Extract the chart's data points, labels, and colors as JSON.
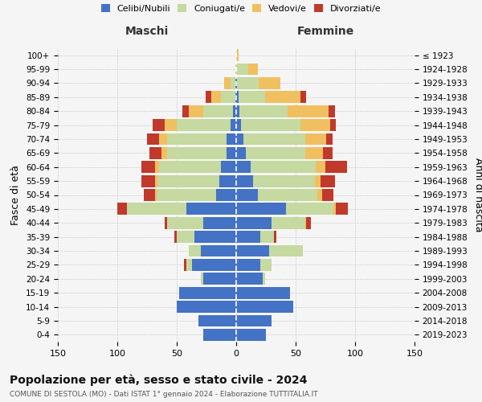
{
  "age_groups": [
    "0-4",
    "5-9",
    "10-14",
    "15-19",
    "20-24",
    "25-29",
    "30-34",
    "35-39",
    "40-44",
    "45-49",
    "50-54",
    "55-59",
    "60-64",
    "65-69",
    "70-74",
    "75-79",
    "80-84",
    "85-89",
    "90-94",
    "95-99",
    "100+"
  ],
  "birth_years": [
    "2019-2023",
    "2014-2018",
    "2009-2013",
    "2004-2008",
    "1999-2003",
    "1994-1998",
    "1989-1993",
    "1984-1988",
    "1979-1983",
    "1974-1978",
    "1969-1973",
    "1964-1968",
    "1959-1963",
    "1954-1958",
    "1949-1953",
    "1944-1948",
    "1939-1943",
    "1934-1938",
    "1929-1933",
    "1924-1928",
    "≤ 1923"
  ],
  "colors": {
    "celibe": "#4472c4",
    "coniugato": "#c5d9a0",
    "vedovo": "#f0c060",
    "divorziato": "#c0392b"
  },
  "maschi": {
    "celibe": [
      28,
      32,
      50,
      48,
      28,
      37,
      30,
      35,
      28,
      42,
      17,
      14,
      13,
      8,
      8,
      5,
      3,
      1,
      1,
      0,
      0
    ],
    "coniugato": [
      0,
      0,
      0,
      0,
      2,
      5,
      10,
      15,
      30,
      50,
      50,
      52,
      52,
      50,
      50,
      45,
      25,
      12,
      4,
      0,
      0
    ],
    "vedovo": [
      0,
      0,
      0,
      0,
      0,
      0,
      0,
      0,
      0,
      0,
      1,
      2,
      3,
      5,
      7,
      10,
      12,
      8,
      5,
      1,
      0
    ],
    "divorziato": [
      0,
      0,
      0,
      0,
      0,
      2,
      0,
      2,
      2,
      8,
      10,
      12,
      12,
      10,
      10,
      10,
      5,
      5,
      0,
      0,
      0
    ]
  },
  "femmine": {
    "celibe": [
      25,
      30,
      48,
      45,
      22,
      20,
      28,
      20,
      30,
      42,
      18,
      14,
      12,
      8,
      6,
      4,
      3,
      2,
      1,
      0,
      0
    ],
    "coniugato": [
      0,
      0,
      0,
      0,
      2,
      10,
      28,
      12,
      28,
      40,
      50,
      52,
      55,
      50,
      52,
      50,
      40,
      22,
      18,
      10,
      1
    ],
    "vedovo": [
      0,
      0,
      0,
      0,
      0,
      0,
      0,
      0,
      1,
      2,
      4,
      5,
      8,
      15,
      18,
      25,
      35,
      30,
      18,
      8,
      1
    ],
    "divorziato": [
      0,
      0,
      0,
      0,
      0,
      0,
      0,
      2,
      4,
      10,
      10,
      12,
      18,
      8,
      5,
      5,
      5,
      5,
      0,
      0,
      0
    ]
  },
  "title": "Popolazione per età, sesso e stato civile - 2024",
  "subtitle": "COMUNE DI SESTOLA (MO) - Dati ISTAT 1° gennaio 2024 - Elaborazione TUTTITALIA.IT",
  "xlabel_left": "Maschi",
  "xlabel_right": "Femmine",
  "ylabel_left": "Fasce di età",
  "ylabel_right": "Anni di nascita",
  "xlim": 150,
  "bg_color": "#f5f5f5",
  "bar_height": 0.85
}
